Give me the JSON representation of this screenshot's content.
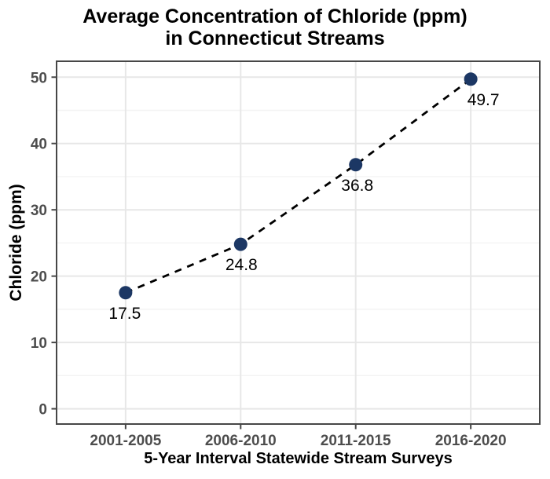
{
  "title": {
    "line1": "Average Concentration of Chloride (ppm)",
    "line2": "in Connecticut Streams"
  },
  "chart_data": {
    "type": "line",
    "title": "Average Concentration of Chloride (ppm) in Connecticut Streams",
    "xlabel": "5-Year Interval Statewide Stream Surveys",
    "ylabel": "Chloride (ppm)",
    "categories": [
      "2001-2005",
      "2006-2010",
      "2011-2015",
      "2016-2020"
    ],
    "values": [
      17.5,
      24.8,
      36.8,
      49.7
    ],
    "point_labels": [
      "17.5",
      "24.8",
      "36.8",
      "49.7"
    ],
    "y_ticks": [
      0,
      10,
      20,
      30,
      40,
      50
    ],
    "y_minor_ticks": [
      5,
      15,
      25,
      35,
      45
    ],
    "ylim": [
      -2.3,
      52.4
    ],
    "grid": "major-and-minor",
    "legend": false,
    "line_style": "dashed",
    "marker": "filled-circle",
    "colors": {
      "point_fill": "#1c3764",
      "line": "#000000",
      "grid_major": "#e7e7e7",
      "grid_minor": "#f3f3f3",
      "panel_border": "#474747",
      "tick_mark": "#474747",
      "tick_text": "#4d4d4d",
      "data_label_text": "#000000",
      "background": "#ffffff"
    }
  }
}
